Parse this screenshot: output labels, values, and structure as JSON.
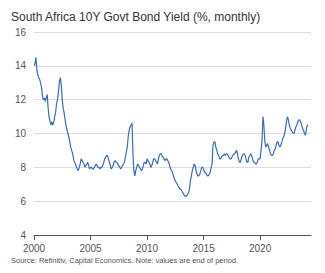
{
  "chart_data": {
    "type": "line",
    "title": "South Africa 10Y Govt Bond Yield (%, monthly)",
    "source": "Source: Refinitiv, Capital Economics. Note: values are end of period.",
    "color": "#3a6bbf",
    "xlim": [
      2000.0,
      2024.5
    ],
    "xticks": [
      2000,
      2005,
      2010,
      2015,
      2020
    ],
    "ylim": [
      4,
      16
    ],
    "yticks": [
      4,
      6,
      8,
      10,
      12,
      14,
      16
    ],
    "grid": true,
    "x": [
      2000.0,
      2000.08,
      2000.17,
      2000.25,
      2000.33,
      2000.42,
      2000.5,
      2000.58,
      2000.67,
      2000.75,
      2000.83,
      2000.92,
      2001.0,
      2001.08,
      2001.17,
      2001.25,
      2001.33,
      2001.42,
      2001.5,
      2001.58,
      2001.67,
      2001.75,
      2001.83,
      2001.92,
      2002.0,
      2002.08,
      2002.17,
      2002.25,
      2002.33,
      2002.42,
      2002.5,
      2002.58,
      2002.67,
      2002.75,
      2002.83,
      2002.92,
      2003.0,
      2003.08,
      2003.17,
      2003.25,
      2003.33,
      2003.42,
      2003.5,
      2003.58,
      2003.67,
      2003.75,
      2003.83,
      2003.92,
      2004.0,
      2004.08,
      2004.17,
      2004.25,
      2004.33,
      2004.42,
      2004.5,
      2004.58,
      2004.67,
      2004.75,
      2004.83,
      2004.92,
      2005.0,
      2005.08,
      2005.17,
      2005.25,
      2005.33,
      2005.42,
      2005.5,
      2005.58,
      2005.67,
      2005.75,
      2005.83,
      2005.92,
      2006.0,
      2006.08,
      2006.17,
      2006.25,
      2006.33,
      2006.42,
      2006.5,
      2006.58,
      2006.67,
      2006.75,
      2006.83,
      2006.92,
      2007.0,
      2007.08,
      2007.17,
      2007.25,
      2007.33,
      2007.42,
      2007.5,
      2007.58,
      2007.67,
      2007.75,
      2007.83,
      2007.92,
      2008.0,
      2008.08,
      2008.17,
      2008.25,
      2008.33,
      2008.42,
      2008.5,
      2008.58,
      2008.67,
      2008.75,
      2008.83,
      2008.92,
      2009.0,
      2009.08,
      2009.17,
      2009.25,
      2009.33,
      2009.42,
      2009.5,
      2009.58,
      2009.67,
      2009.75,
      2009.83,
      2009.92,
      2010.0,
      2010.08,
      2010.17,
      2010.25,
      2010.33,
      2010.42,
      2010.5,
      2010.58,
      2010.67,
      2010.75,
      2010.83,
      2010.92,
      2011.0,
      2011.08,
      2011.17,
      2011.25,
      2011.33,
      2011.42,
      2011.5,
      2011.58,
      2011.67,
      2011.75,
      2011.83,
      2011.92,
      2012.0,
      2012.08,
      2012.17,
      2012.25,
      2012.33,
      2012.42,
      2012.5,
      2012.58,
      2012.67,
      2012.75,
      2012.83,
      2012.92,
      2013.0,
      2013.08,
      2013.17,
      2013.25,
      2013.33,
      2013.42,
      2013.5,
      2013.58,
      2013.67,
      2013.75,
      2013.83,
      2013.92,
      2014.0,
      2014.08,
      2014.17,
      2014.25,
      2014.33,
      2014.42,
      2014.5,
      2014.58,
      2014.67,
      2014.75,
      2014.83,
      2014.92,
      2015.0,
      2015.08,
      2015.17,
      2015.25,
      2015.33,
      2015.42,
      2015.5,
      2015.58,
      2015.67,
      2015.75,
      2015.83,
      2015.92,
      2016.0,
      2016.08,
      2016.17,
      2016.25,
      2016.33,
      2016.42,
      2016.5,
      2016.58,
      2016.67,
      2016.75,
      2016.83,
      2016.92,
      2017.0,
      2017.08,
      2017.17,
      2017.25,
      2017.33,
      2017.42,
      2017.5,
      2017.58,
      2017.67,
      2017.75,
      2017.83,
      2017.92,
      2018.0,
      2018.08,
      2018.17,
      2018.25,
      2018.33,
      2018.42,
      2018.5,
      2018.58,
      2018.67,
      2018.75,
      2018.83,
      2018.92,
      2019.0,
      2019.08,
      2019.17,
      2019.25,
      2019.33,
      2019.42,
      2019.5,
      2019.58,
      2019.67,
      2019.75,
      2019.83,
      2019.92,
      2020.0,
      2020.08,
      2020.17,
      2020.25,
      2020.33,
      2020.42,
      2020.5,
      2020.58,
      2020.67,
      2020.75,
      2020.83,
      2020.92,
      2021.0,
      2021.08,
      2021.17,
      2021.25,
      2021.33,
      2021.42,
      2021.5,
      2021.58,
      2021.67,
      2021.75,
      2021.83,
      2021.92,
      2022.0,
      2022.08,
      2022.17,
      2022.25,
      2022.33,
      2022.42,
      2022.5,
      2022.58,
      2022.67,
      2022.75,
      2022.83,
      2022.92,
      2023.0,
      2023.08,
      2023.17,
      2023.25,
      2023.33,
      2023.42,
      2023.5,
      2023.58,
      2023.67,
      2023.75,
      2023.83,
      2023.92,
      2024.0,
      2024.08,
      2024.17,
      2024.25
    ],
    "values": [
      14.0,
      14.1,
      14.5,
      13.8,
      13.5,
      13.3,
      13.2,
      13.0,
      12.7,
      12.2,
      12.0,
      12.1,
      11.9,
      12.1,
      12.3,
      11.5,
      11.0,
      10.7,
      10.5,
      10.7,
      10.5,
      10.7,
      11.0,
      11.3,
      11.8,
      12.0,
      12.5,
      13.1,
      13.3,
      12.8,
      12.0,
      11.5,
      11.2,
      10.8,
      10.5,
      10.2,
      10.0,
      9.8,
      9.5,
      9.2,
      9.0,
      8.8,
      8.5,
      8.3,
      8.2,
      8.0,
      7.9,
      7.8,
      8.0,
      8.2,
      8.5,
      8.4,
      8.3,
      8.2,
      8.0,
      8.1,
      8.2,
      8.3,
      8.1,
      7.9,
      8.0,
      8.0,
      7.9,
      7.9,
      8.0,
      8.1,
      8.2,
      8.1,
      8.0,
      8.0,
      7.9,
      8.0,
      8.0,
      8.1,
      8.3,
      8.5,
      8.6,
      8.7,
      8.7,
      8.5,
      8.3,
      8.1,
      7.9,
      8.0,
      8.1,
      8.3,
      8.4,
      8.3,
      8.3,
      8.2,
      8.1,
      8.0,
      7.9,
      8.0,
      8.1,
      8.2,
      8.3,
      8.6,
      8.9,
      9.2,
      9.8,
      10.2,
      10.4,
      10.5,
      10.6,
      8.8,
      7.8,
      7.5,
      7.8,
      8.0,
      8.2,
      8.1,
      8.0,
      7.9,
      7.8,
      7.9,
      8.1,
      8.3,
      8.3,
      8.2,
      8.5,
      8.4,
      8.3,
      8.2,
      8.0,
      8.1,
      8.3,
      8.5,
      8.5,
      8.4,
      8.3,
      8.2,
      8.5,
      8.7,
      8.8,
      8.8,
      8.7,
      8.6,
      8.5,
      8.4,
      8.5,
      8.5,
      8.4,
      8.3,
      8.1,
      7.9,
      7.8,
      7.7,
      7.5,
      7.3,
      7.2,
      7.1,
      7.0,
      6.9,
      6.8,
      6.7,
      6.7,
      6.6,
      6.5,
      6.4,
      6.3,
      6.3,
      6.3,
      6.4,
      6.5,
      6.7,
      7.2,
      7.5,
      7.8,
      8.0,
      8.2,
      8.1,
      7.8,
      7.6,
      7.5,
      7.5,
      7.6,
      7.8,
      8.0,
      8.0,
      7.9,
      7.7,
      7.7,
      7.6,
      7.5,
      7.5,
      7.6,
      7.7,
      8.0,
      8.2,
      9.3,
      9.5,
      9.5,
      9.2,
      9.0,
      8.8,
      8.7,
      8.5,
      8.5,
      8.6,
      8.7,
      8.7,
      8.8,
      8.7,
      8.8,
      8.8,
      8.7,
      8.6,
      8.5,
      8.5,
      8.6,
      8.7,
      8.8,
      8.8,
      8.9,
      9.0,
      8.8,
      8.5,
      8.3,
      8.3,
      8.5,
      8.7,
      8.8,
      8.8,
      8.7,
      8.5,
      8.3,
      8.3,
      8.6,
      8.7,
      8.8,
      8.7,
      8.5,
      8.3,
      8.3,
      8.2,
      8.2,
      8.3,
      8.5,
      8.5,
      8.5,
      9.0,
      9.6,
      11.0,
      10.5,
      9.5,
      9.2,
      9.3,
      9.4,
      9.2,
      9.0,
      8.8,
      8.7,
      8.7,
      8.8,
      9.0,
      9.1,
      9.3,
      9.5,
      9.5,
      9.3,
      9.2,
      9.3,
      9.5,
      9.7,
      9.8,
      10.0,
      10.3,
      10.7,
      11.0,
      10.8,
      10.5,
      10.3,
      10.2,
      10.1,
      10.0,
      10.0,
      10.2,
      10.4,
      10.5,
      10.7,
      10.8,
      10.8,
      10.7,
      10.5,
      10.3,
      10.2,
      10.0,
      9.9,
      10.2,
      10.5,
      10.5
    ]
  }
}
